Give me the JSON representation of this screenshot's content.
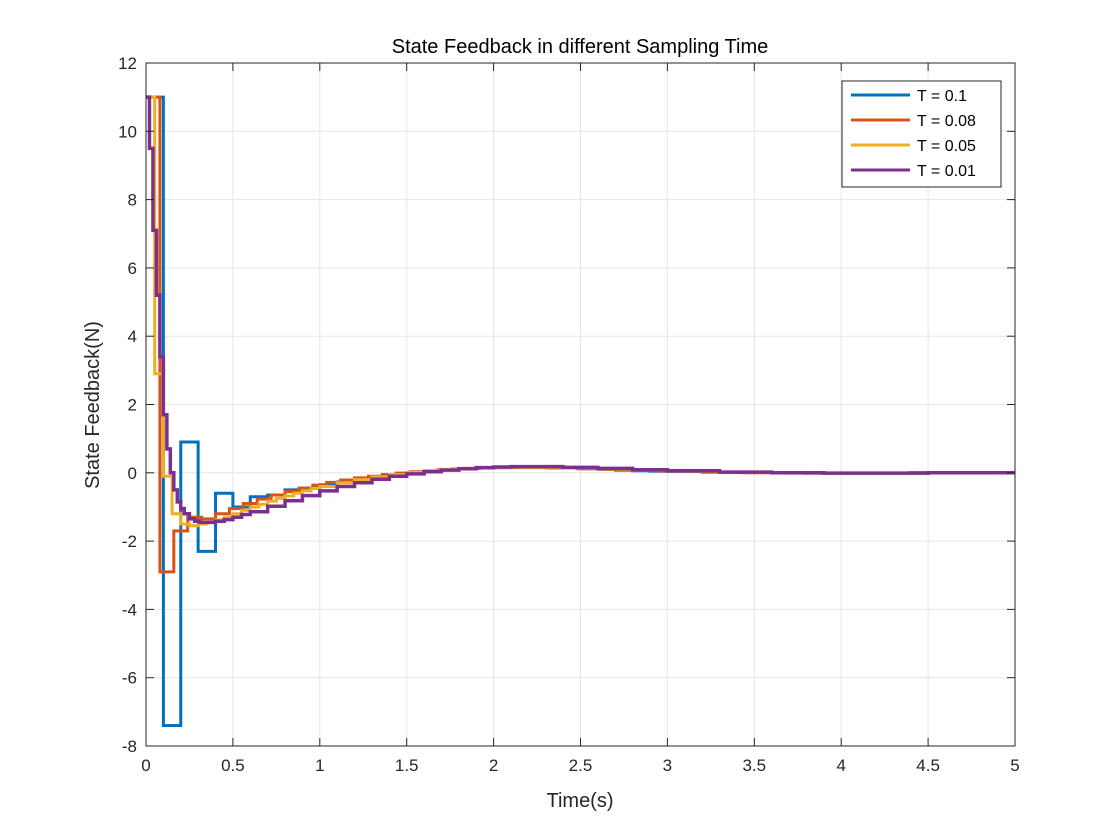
{
  "chart_data": {
    "type": "line",
    "title": "State Feedback in different Sampling Time",
    "xlabel": "Time(s)",
    "ylabel": "State Feedback(N)",
    "xlim": [
      0,
      5
    ],
    "ylim": [
      -8,
      12
    ],
    "xticks": [
      0,
      0.5,
      1,
      1.5,
      2,
      2.5,
      3,
      3.5,
      4,
      4.5,
      5
    ],
    "xtick_labels": [
      "0",
      "0.5",
      "1",
      "1.5",
      "2",
      "2.5",
      "3",
      "3.5",
      "4",
      "4.5",
      "5"
    ],
    "yticks": [
      -8,
      -6,
      -4,
      -2,
      0,
      2,
      4,
      6,
      8,
      10,
      12
    ],
    "ytick_labels": [
      "-8",
      "-6",
      "-4",
      "-2",
      "0",
      "2",
      "4",
      "6",
      "8",
      "10",
      "12"
    ],
    "grid": true,
    "legend_position": "top-right",
    "step": true,
    "series": [
      {
        "name": "T = 0.1",
        "color": "#0072BD",
        "x": [
          0,
          0.1,
          0.2,
          0.3,
          0.4,
          0.5,
          0.6,
          0.7,
          0.8,
          0.9,
          1.0,
          1.1,
          1.2,
          1.3,
          1.4,
          1.5,
          1.6,
          1.7,
          1.8,
          1.9,
          2.0,
          2.1,
          2.2,
          2.3,
          2.4,
          2.5,
          2.6,
          2.7,
          2.8,
          2.9,
          3.0,
          3.2,
          3.4,
          3.6,
          3.8,
          4.0,
          4.2,
          4.4,
          4.6,
          4.8,
          5.0
        ],
        "y": [
          11.0,
          -7.4,
          0.9,
          -2.3,
          -0.6,
          -1.0,
          -0.7,
          -0.65,
          -0.5,
          -0.45,
          -0.35,
          -0.27,
          -0.2,
          -0.13,
          -0.06,
          0.0,
          0.05,
          0.09,
          0.12,
          0.14,
          0.15,
          0.16,
          0.16,
          0.15,
          0.14,
          0.12,
          0.1,
          0.08,
          0.06,
          0.05,
          0.04,
          0.02,
          0.01,
          0.0,
          -0.01,
          -0.01,
          -0.01,
          0.0,
          0.0,
          0.0,
          0.0
        ]
      },
      {
        "name": "T = 0.08",
        "color": "#D95319",
        "x": [
          0,
          0.08,
          0.16,
          0.24,
          0.32,
          0.4,
          0.48,
          0.56,
          0.64,
          0.72,
          0.8,
          0.88,
          0.96,
          1.04,
          1.12,
          1.2,
          1.28,
          1.36,
          1.44,
          1.52,
          1.6,
          1.68,
          1.76,
          1.84,
          1.92,
          2.0,
          2.16,
          2.32,
          2.48,
          2.64,
          2.8,
          2.96,
          3.2,
          3.44,
          3.68,
          3.92,
          4.16,
          4.4,
          4.64,
          4.88,
          5.0
        ],
        "y": [
          11.0,
          -2.9,
          -1.7,
          -1.3,
          -1.35,
          -1.2,
          -1.05,
          -0.9,
          -0.77,
          -0.65,
          -0.55,
          -0.45,
          -0.36,
          -0.28,
          -0.21,
          -0.15,
          -0.1,
          -0.05,
          -0.01,
          0.03,
          0.06,
          0.09,
          0.11,
          0.13,
          0.14,
          0.15,
          0.15,
          0.14,
          0.12,
          0.1,
          0.07,
          0.05,
          0.02,
          0.0,
          -0.01,
          -0.01,
          -0.01,
          0.0,
          0.0,
          0.0,
          0.0
        ]
      },
      {
        "name": "T = 0.05",
        "color": "#EDB120",
        "x": [
          0,
          0.05,
          0.1,
          0.15,
          0.2,
          0.25,
          0.3,
          0.35,
          0.4,
          0.45,
          0.5,
          0.55,
          0.6,
          0.65,
          0.7,
          0.75,
          0.8,
          0.85,
          0.9,
          0.95,
          1.0,
          1.1,
          1.2,
          1.3,
          1.4,
          1.5,
          1.6,
          1.7,
          1.8,
          1.9,
          2.0,
          2.2,
          2.4,
          2.6,
          2.8,
          3.0,
          3.3,
          3.6,
          3.9,
          4.2,
          4.5,
          4.8,
          5.0
        ],
        "y": [
          11.0,
          2.9,
          -0.1,
          -1.2,
          -1.5,
          -1.55,
          -1.5,
          -1.45,
          -1.38,
          -1.3,
          -1.2,
          -1.1,
          -1.0,
          -0.92,
          -0.83,
          -0.75,
          -0.68,
          -0.6,
          -0.53,
          -0.46,
          -0.4,
          -0.29,
          -0.2,
          -0.12,
          -0.05,
          0.01,
          0.06,
          0.1,
          0.13,
          0.15,
          0.16,
          0.16,
          0.14,
          0.11,
          0.08,
          0.05,
          0.02,
          0.0,
          -0.01,
          -0.01,
          0.0,
          0.0,
          0.0
        ]
      },
      {
        "name": "T = 0.01",
        "color": "#7E2F8E",
        "x": [
          0,
          0.02,
          0.04,
          0.06,
          0.08,
          0.1,
          0.12,
          0.14,
          0.16,
          0.18,
          0.2,
          0.22,
          0.25,
          0.28,
          0.31,
          0.35,
          0.4,
          0.45,
          0.5,
          0.55,
          0.6,
          0.7,
          0.8,
          0.9,
          1.0,
          1.1,
          1.2,
          1.3,
          1.4,
          1.5,
          1.6,
          1.7,
          1.8,
          1.9,
          2.0,
          2.1,
          2.2,
          2.4,
          2.6,
          2.8,
          3.0,
          3.3,
          3.6,
          3.9,
          4.2,
          4.5,
          4.8,
          5.0
        ],
        "y": [
          11.0,
          9.5,
          7.1,
          5.2,
          3.4,
          1.7,
          0.7,
          0.0,
          -0.5,
          -0.85,
          -1.05,
          -1.2,
          -1.35,
          -1.42,
          -1.45,
          -1.45,
          -1.42,
          -1.37,
          -1.3,
          -1.22,
          -1.14,
          -0.98,
          -0.82,
          -0.67,
          -0.53,
          -0.4,
          -0.29,
          -0.19,
          -0.1,
          -0.03,
          0.03,
          0.08,
          0.12,
          0.15,
          0.17,
          0.18,
          0.18,
          0.16,
          0.13,
          0.09,
          0.06,
          0.02,
          0.0,
          -0.01,
          -0.01,
          0.0,
          0.0,
          0.0
        ]
      }
    ]
  }
}
